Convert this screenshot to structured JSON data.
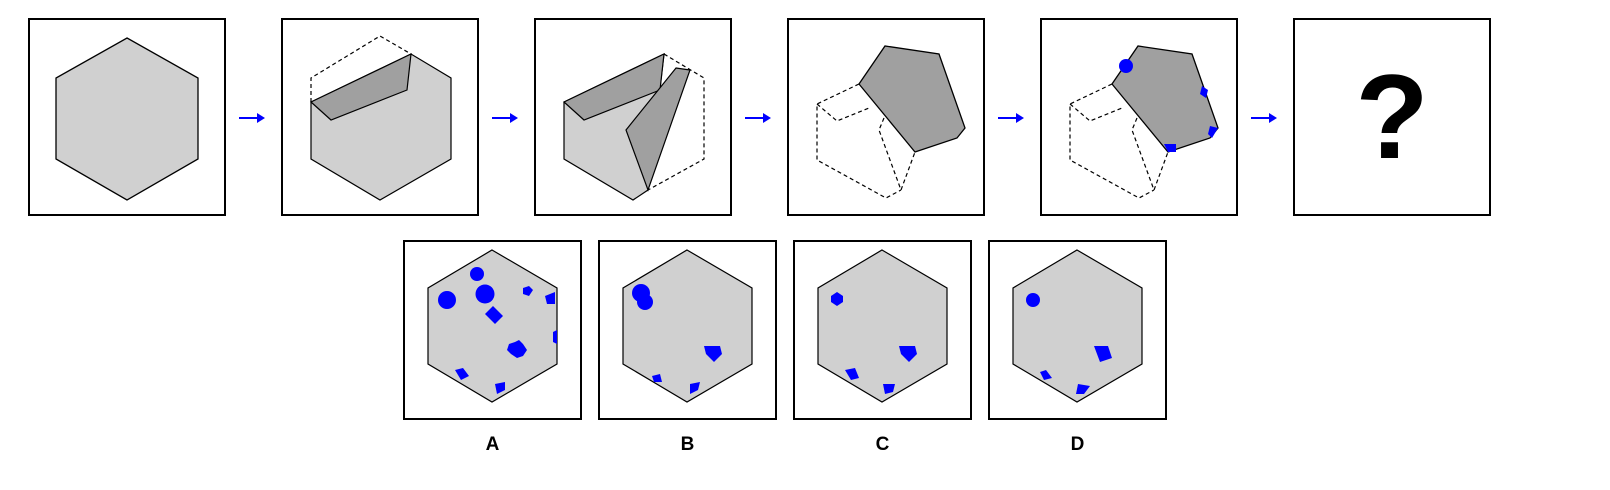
{
  "colors": {
    "paper": "#d0d0d0",
    "fold": "#a0a0a0",
    "hole": "#0000ff",
    "outline": "#000000",
    "arrow": "#0000ff"
  },
  "sequence": {
    "steps": [
      "unfolded-hexagon",
      "first-fold",
      "second-fold",
      "folded-shape",
      "punched-folded-shape"
    ],
    "question": "?"
  },
  "options": [
    {
      "label": "A"
    },
    {
      "label": "B"
    },
    {
      "label": "C"
    },
    {
      "label": "D"
    }
  ]
}
